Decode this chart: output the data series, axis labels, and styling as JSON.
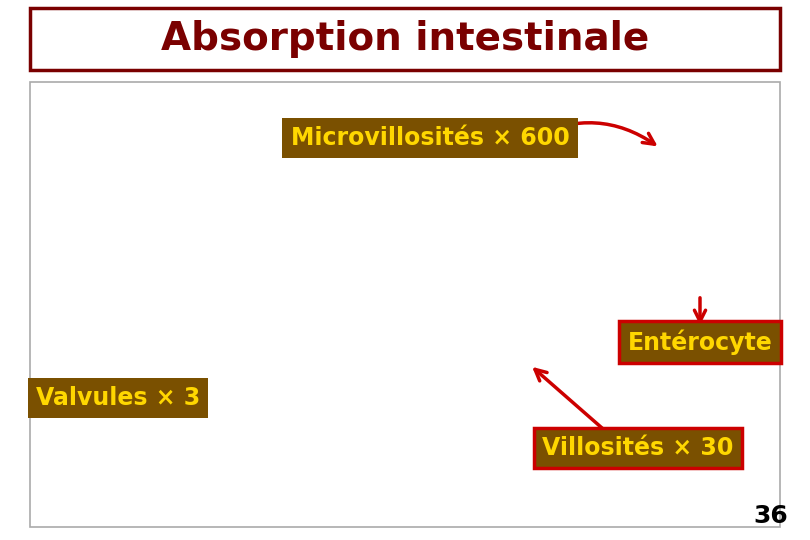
{
  "title": "Absorption intestinale",
  "title_color": "#7A0000",
  "title_fontsize": 28,
  "title_box_edge_color": "#7A0000",
  "background_color": "#FFFFFF",
  "labels": {
    "microvillosites": "Microvillosités × 600",
    "enterocyte": "Entérocyte",
    "valvules": "Valvules × 3",
    "villosites": "Villosités × 30",
    "page_num": "36"
  },
  "label_brown_bg": "#7A5000",
  "label_text_color": "#FFD700",
  "label_fontsize": 17,
  "page_num_fontsize": 18,
  "page_num_color": "#000000",
  "arrow_color": "#CC0000",
  "content_border_color": "#AAAAAA",
  "enterocyte_border": "#CC0000",
  "villosites_border": "#CC0000"
}
